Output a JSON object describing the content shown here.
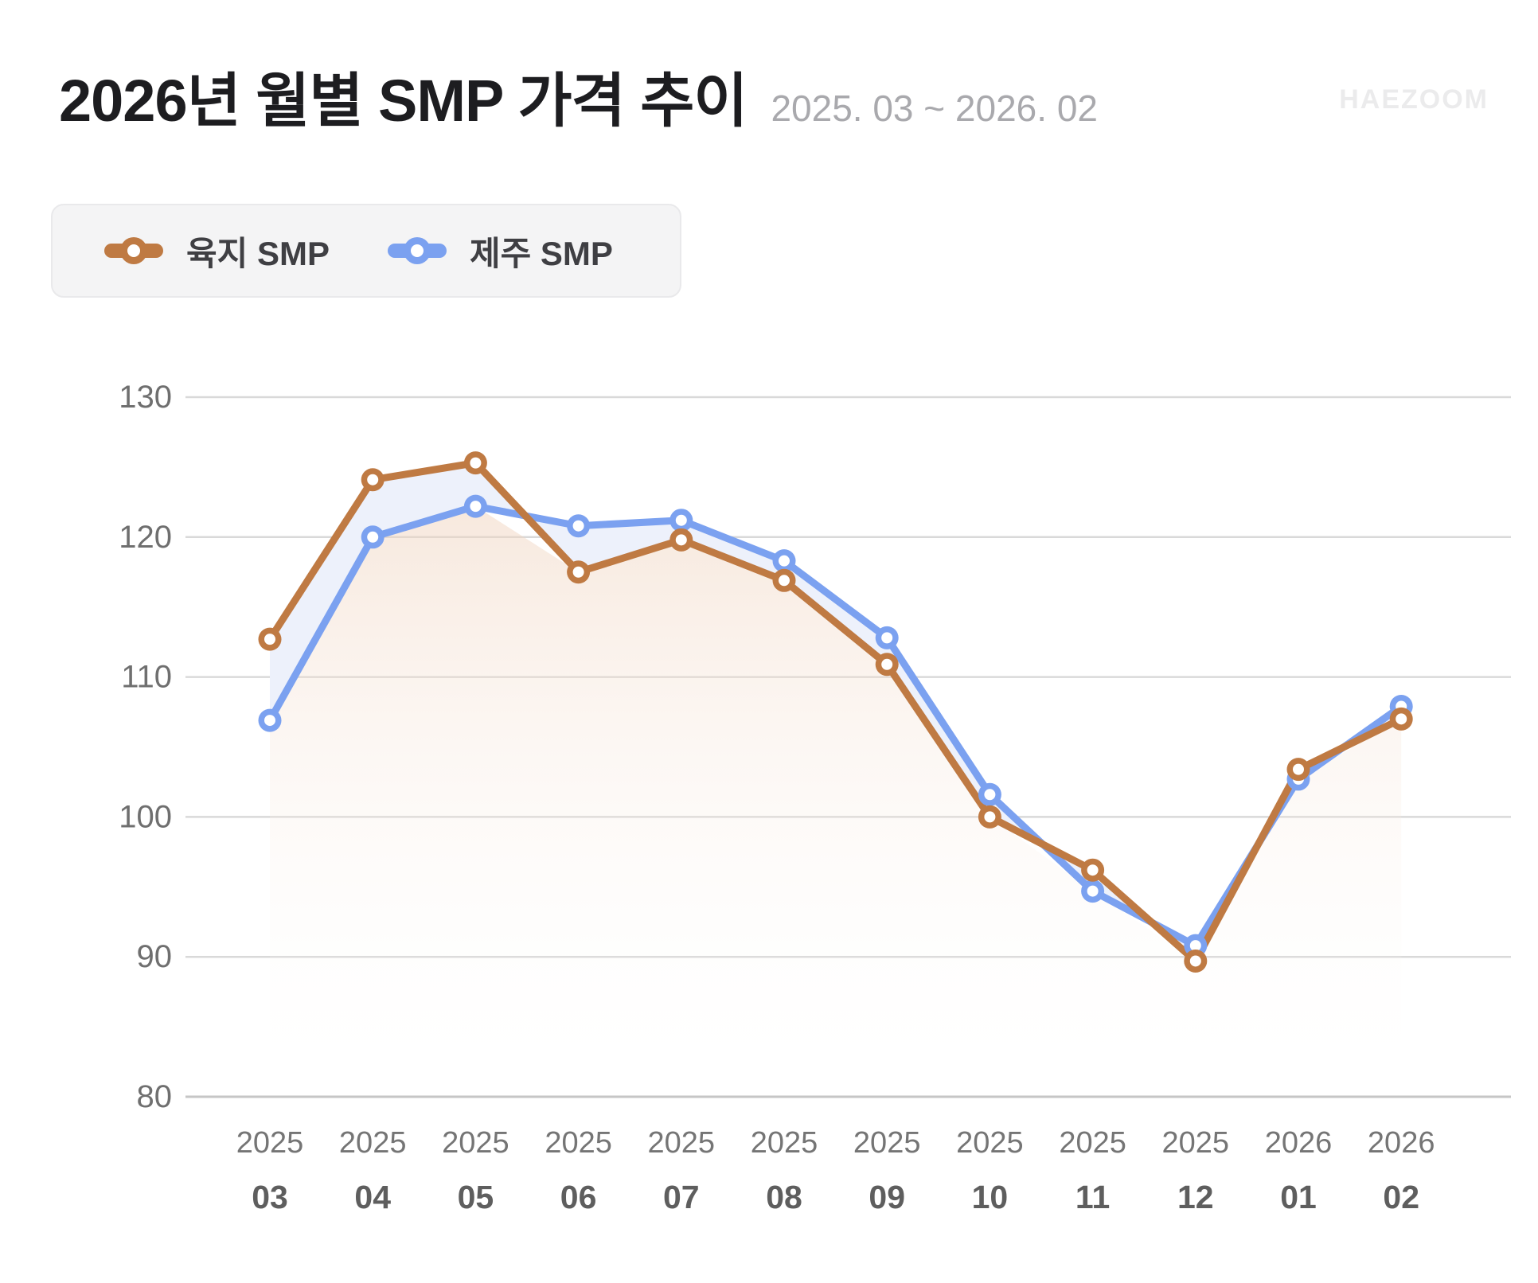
{
  "watermark": "HAEZOOM",
  "chart_data": {
    "type": "line",
    "title": "2026년 월별 SMP 가격 추이",
    "period": "2025. 03 ~ 2026. 02",
    "xlabel": "",
    "ylabel": "",
    "ylim": [
      80,
      130
    ],
    "y_ticks": [
      130,
      120,
      110,
      100,
      90,
      80
    ],
    "grid": "horizontal",
    "legend_position": "top-left",
    "x_categories": [
      {
        "year": "2025",
        "month": "03"
      },
      {
        "year": "2025",
        "month": "04"
      },
      {
        "year": "2025",
        "month": "05"
      },
      {
        "year": "2025",
        "month": "06"
      },
      {
        "year": "2025",
        "month": "07"
      },
      {
        "year": "2025",
        "month": "08"
      },
      {
        "year": "2025",
        "month": "09"
      },
      {
        "year": "2025",
        "month": "10"
      },
      {
        "year": "2025",
        "month": "11"
      },
      {
        "year": "2025",
        "month": "12"
      },
      {
        "year": "2026",
        "month": "01"
      },
      {
        "year": "2026",
        "month": "02"
      }
    ],
    "series": [
      {
        "id": "yukji-smp",
        "name": "육지 SMP",
        "color": "#bf7a43",
        "values": [
          112.7,
          124.1,
          125.3,
          117.5,
          119.8,
          116.9,
          110.9,
          100.0,
          96.2,
          89.7,
          103.4,
          107.0
        ]
      },
      {
        "id": "jeju-smp",
        "name": "제주 SMP",
        "color": "#7ba1f0",
        "values": [
          106.9,
          120.0,
          122.2,
          120.8,
          121.2,
          118.3,
          112.8,
          101.6,
          94.7,
          90.8,
          102.7,
          107.9
        ]
      }
    ],
    "fills": {
      "between_lines": "#edf1fb",
      "under_area_top": "rgba(238,206,182,0.55)",
      "under_area_bottom": "rgba(255,255,255,0)"
    },
    "grid_color": "#d9d9d9",
    "axis_line_color": "#c6c6c6",
    "axis_label_color": "#6f6f6f"
  }
}
